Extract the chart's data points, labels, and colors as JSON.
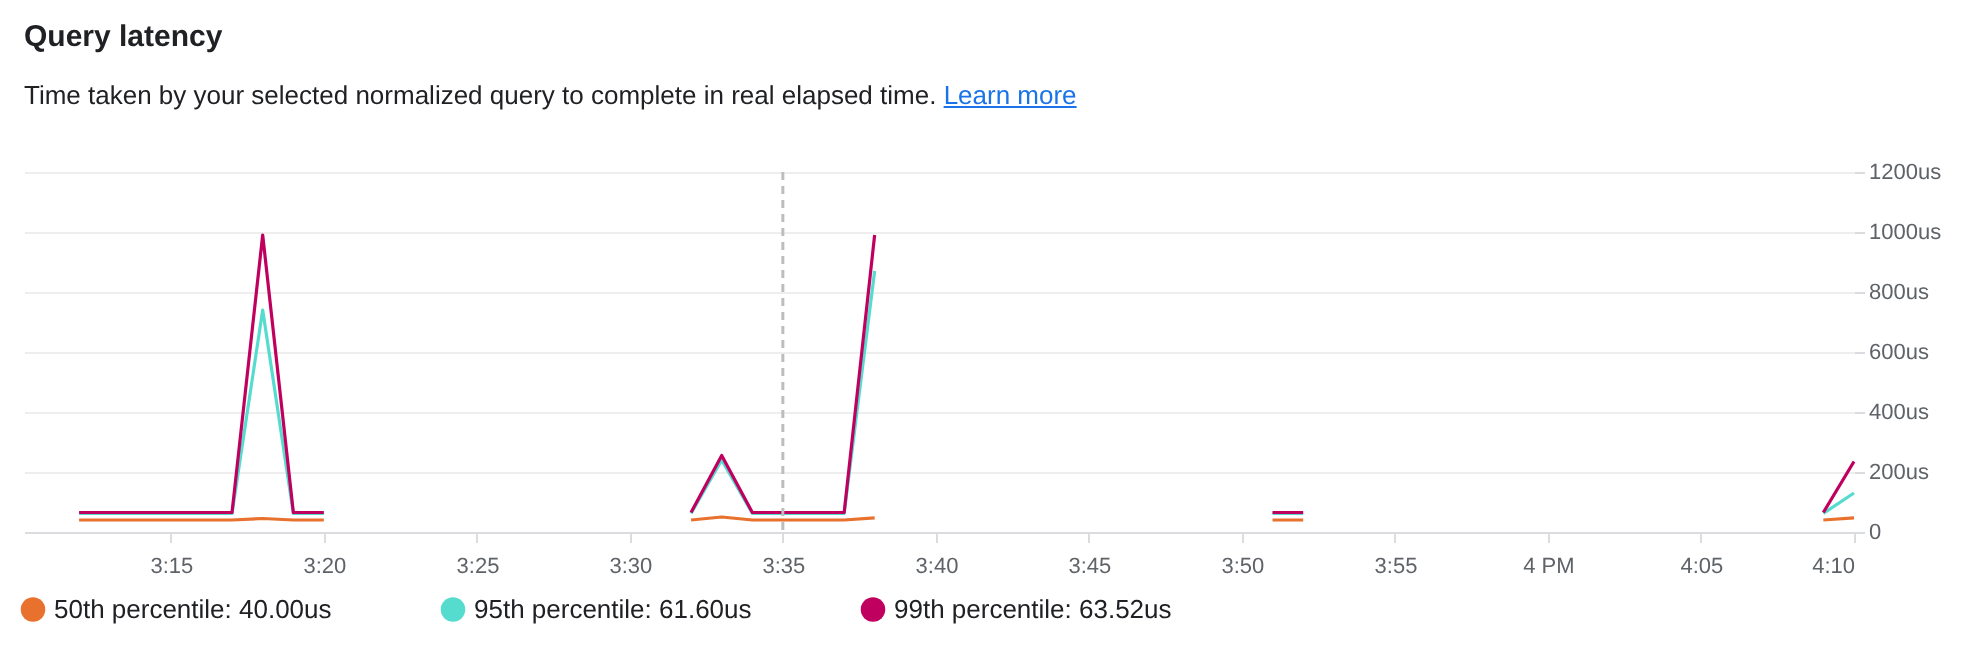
{
  "chart_data": {
    "type": "line",
    "title": "Query latency",
    "subtitle": "Time taken by your selected normalized query to complete in real elapsed time.",
    "annotations": [
      "Learn more"
    ],
    "x": [
      3.2,
      3.2167,
      3.2333,
      3.25,
      3.2667,
      3.2833,
      3.3,
      3.3167,
      3.3333,
      3.35,
      3.5333,
      3.55,
      3.5667,
      3.5833,
      3.6,
      3.6167,
      3.6333,
      3.65,
      3.85,
      3.8667,
      3.8833,
      4.15,
      4.1667
    ],
    "series": [
      {
        "name": "50th percentile:  40.00us",
        "color": "#e8712e",
        "values": [
          40,
          40,
          40,
          40,
          40,
          40,
          45,
          40,
          40,
          null,
          40,
          50,
          40,
          40,
          40,
          40,
          47,
          null,
          40,
          40,
          null,
          40,
          47
        ]
      },
      {
        "name": "95th percentile:  61.60us",
        "color": "#56dccf",
        "values": [
          62,
          62,
          62,
          62,
          62,
          62,
          740,
          62,
          62,
          null,
          62,
          240,
          62,
          62,
          62,
          62,
          870,
          null,
          62,
          62,
          null,
          62,
          130
        ]
      },
      {
        "name": "99th percentile:  63.52us",
        "color": "#c0005e",
        "values": [
          65,
          65,
          65,
          65,
          65,
          65,
          990,
          65,
          65,
          null,
          65,
          255,
          65,
          65,
          65,
          65,
          990,
          null,
          65,
          65,
          null,
          65,
          235
        ]
      }
    ],
    "xlim": [
      3.17,
      4.1667
    ],
    "xticks": [
      {
        "value": 3.25,
        "label": "3:15"
      },
      {
        "value": 3.3333,
        "label": "3:20"
      },
      {
        "value": 3.4167,
        "label": "3:25"
      },
      {
        "value": 3.5,
        "label": "3:30"
      },
      {
        "value": 3.5833,
        "label": "3:35"
      },
      {
        "value": 3.6667,
        "label": "3:40"
      },
      {
        "value": 3.75,
        "label": "3:45"
      },
      {
        "value": 3.8333,
        "label": "3:50"
      },
      {
        "value": 3.9167,
        "label": "3:55"
      },
      {
        "value": 4,
        "label": "4 PM"
      },
      {
        "value": 4.0833,
        "label": "4:05"
      },
      {
        "value": 4.1667,
        "label": "4:10"
      }
    ],
    "ylim": [
      0,
      1200
    ],
    "yticks": [
      0,
      {
        "value": 200,
        "label": "200us"
      },
      {
        "value": 400,
        "label": "400us"
      },
      {
        "value": 600,
        "label": "600us"
      },
      {
        "value": 800,
        "label": "800us"
      },
      {
        "value": 1000,
        "label": "1000us"
      },
      {
        "value": 1200,
        "label": "1200us"
      }
    ],
    "ref_lines": [
      {
        "axis": "x",
        "value": 3.5833,
        "color": "#bdbdbd",
        "line_style": "dashed"
      }
    ],
    "grid": "y",
    "legend": "bottom",
    "marker": "none",
    "line_style": "solid"
  }
}
